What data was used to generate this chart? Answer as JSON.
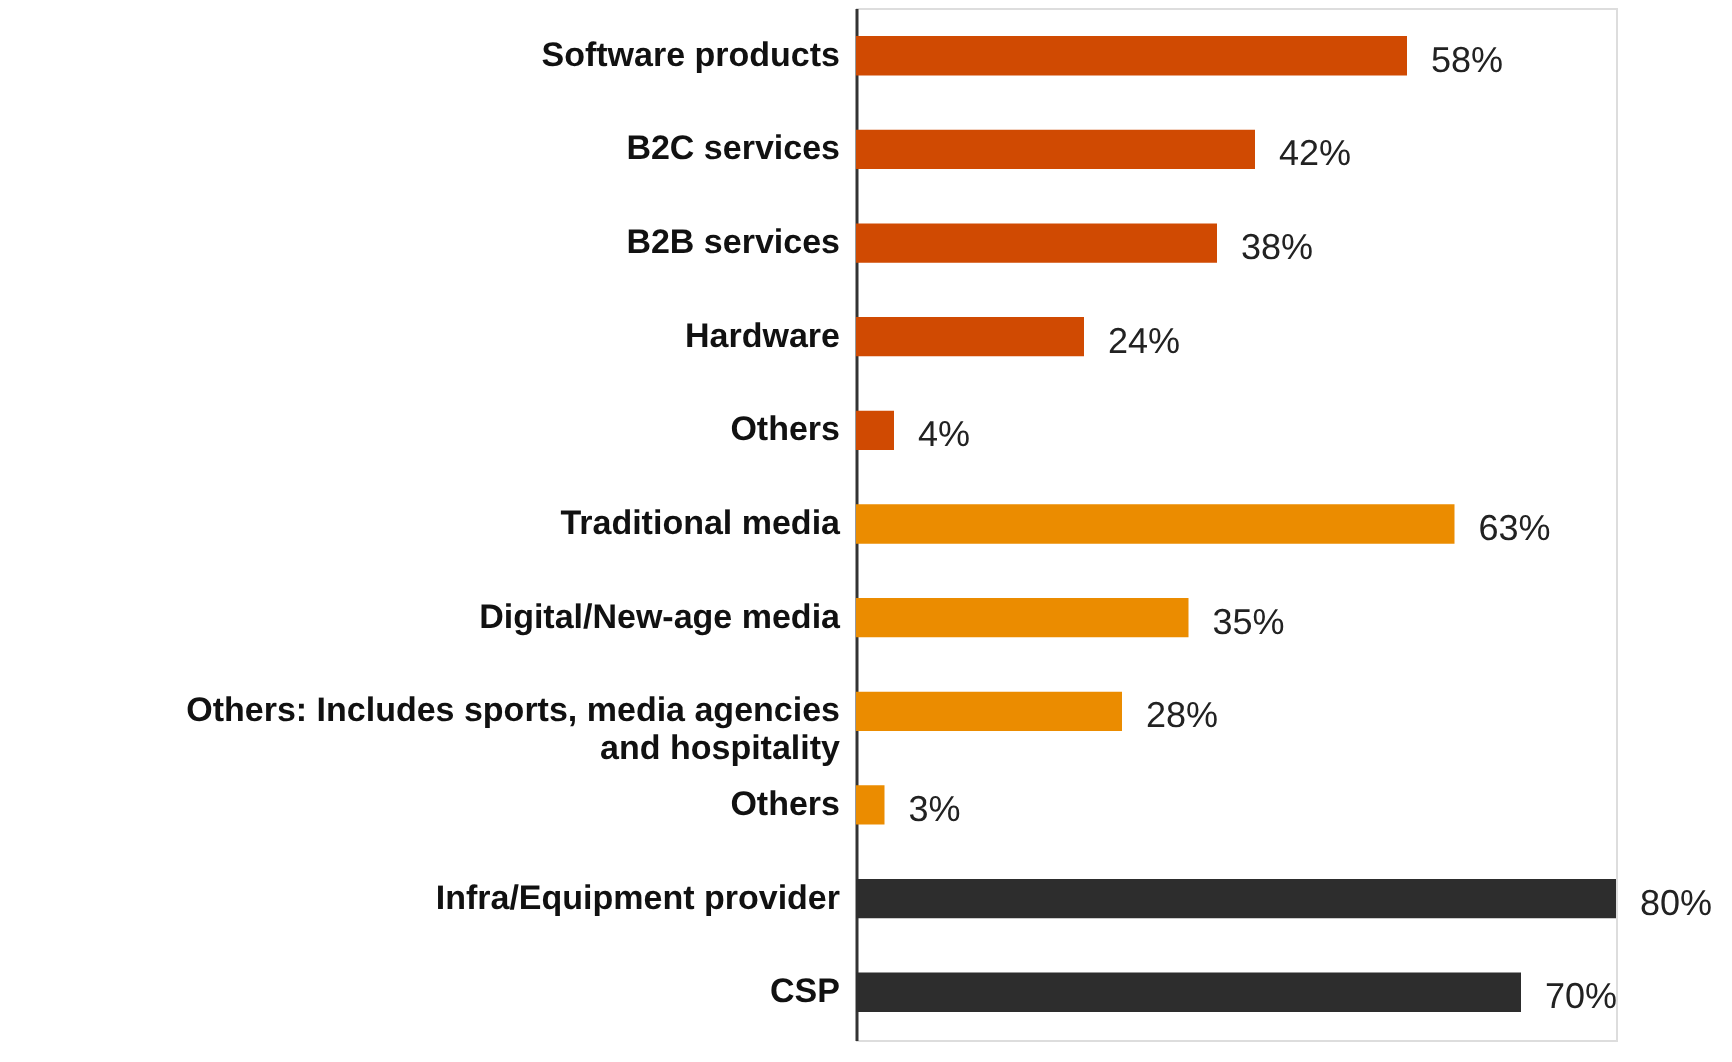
{
  "chart_data": {
    "type": "bar",
    "orientation": "horizontal",
    "categories": [
      "Software products",
      "B2C services",
      "B2B services",
      "Hardware",
      "Others",
      "Traditional media",
      "Digital/New-age media",
      "Others: Includes sports, media agencies and hospitality",
      "Others",
      "Infra/Equipment provider",
      "CSP"
    ],
    "values": [
      58,
      42,
      38,
      24,
      4,
      63,
      35,
      28,
      3,
      80,
      70
    ],
    "colors": [
      "#d04a02",
      "#d04a02",
      "#d04a02",
      "#d04a02",
      "#d04a02",
      "#eb8c00",
      "#eb8c00",
      "#eb8c00",
      "#eb8c00",
      "#2d2d2d",
      "#2d2d2d"
    ],
    "value_labels": [
      "58%",
      "42%",
      "38%",
      "24%",
      "4%",
      "63%",
      "35%",
      "28%",
      "3%",
      "80%",
      "70%"
    ]
  }
}
